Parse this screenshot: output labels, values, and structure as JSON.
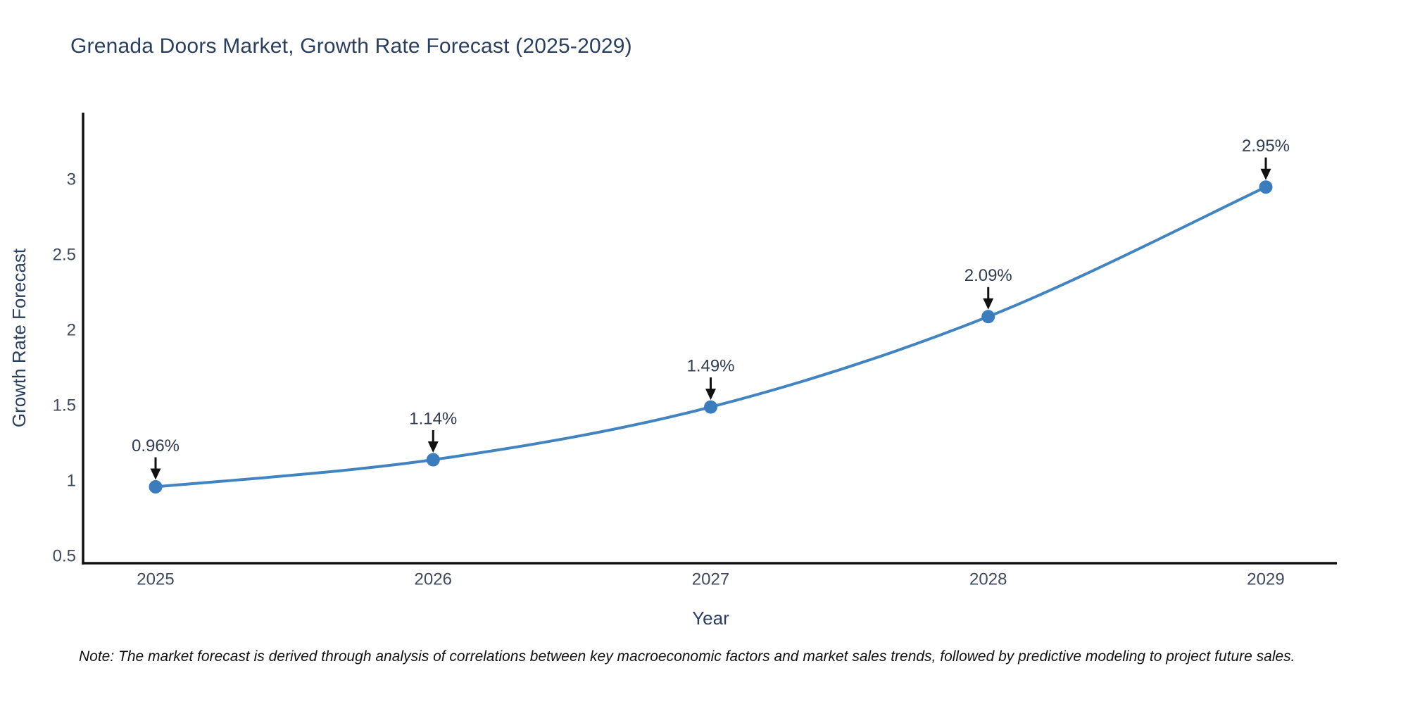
{
  "page": {
    "title": "Grenada Doors Market, Growth Rate Forecast (2025-2029)",
    "note": "Note: The market forecast is derived through analysis of correlations between key macroeconomic factors and market sales trends, followed by predictive modeling to project future sales."
  },
  "chart_data": {
    "type": "line",
    "title": "Grenada Doors Market, Growth Rate Forecast (2025-2029)",
    "xlabel": "Year",
    "ylabel": "Growth Rate Forecast",
    "x": [
      2025,
      2026,
      2027,
      2028,
      2029
    ],
    "series": [
      {
        "name": "Growth Rate Forecast",
        "values": [
          0.96,
          1.14,
          1.49,
          2.09,
          2.95
        ]
      }
    ],
    "point_labels": [
      "0.96%",
      "1.14%",
      "1.49%",
      "2.09%",
      "2.95%"
    ],
    "xticks": [
      "2025",
      "2026",
      "2027",
      "2028",
      "2029"
    ],
    "yticks": [
      "0.5",
      "1",
      "1.5",
      "2",
      "2.5",
      "3"
    ],
    "ytick_values": [
      0.5,
      1,
      1.5,
      2,
      2.5,
      3
    ],
    "ylim": [
      0.45,
      3.45
    ],
    "xlim": [
      2024.74,
      2029.26
    ],
    "grid": false,
    "legend_position": "none",
    "line_shape": "spline",
    "colors": {
      "line": "#4184c0",
      "marker": "#3b7cbd",
      "axis": "#111111",
      "tick_label": "#3f4a5c",
      "axis_title": "#2a3f5f",
      "annotation_text": "#2f3c52",
      "annotation_arrow": "#111111"
    }
  }
}
